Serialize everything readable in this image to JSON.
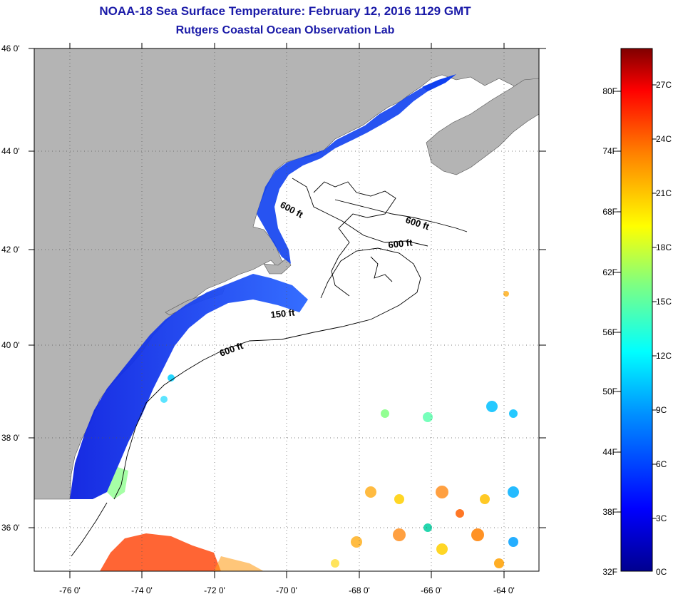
{
  "title": "NOAA-18 Sea Surface Temperature:  February 12, 2016 1129 GMT",
  "subtitle": "Rutgers Coastal Ocean Observation Lab",
  "lon_labels": [
    "-76 0'",
    "-74 0'",
    "-72 0'",
    "-70 0'",
    "-68 0'",
    "-66 0'",
    "-64 0'"
  ],
  "lat_labels": [
    "46 0'",
    "44 0'",
    "42 0'",
    "40 0'",
    "38 0'",
    "36 0'"
  ],
  "contour_labels": [
    "600 ft",
    "600 ft",
    "600 ft",
    "150 ft",
    "600 ft"
  ],
  "colorbar": {
    "f_labels": [
      "80F",
      "74F",
      "68F",
      "62F",
      "56F",
      "50F",
      "44F",
      "38F",
      "32F"
    ],
    "c_labels": [
      "27C",
      "24C",
      "21C",
      "18C",
      "15C",
      "12C",
      "9C",
      "6C",
      "3C",
      "0C"
    ]
  },
  "colors": {
    "title": "#1a1aa8",
    "land": "#b4b4b4",
    "ocean_cloud": "#ffffff"
  }
}
